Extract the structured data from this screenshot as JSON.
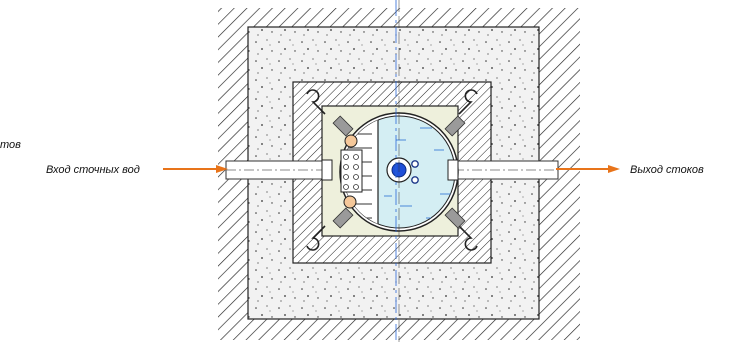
{
  "labels": {
    "left_cut": "тов",
    "inlet": "Вход сточных вод",
    "outlet": "Выход стоков"
  },
  "colors": {
    "arrow": "#e8741a",
    "concrete_fill": "#f2f2f2",
    "inner_box": "#eef0dc",
    "water": "#d4eef3",
    "float_ball": "#f5c89a",
    "pump_core": "#1f4fd8",
    "axis": "#2a66d6"
  },
  "icons": {
    "inlet_arrow": "arrow-right-icon",
    "outlet_arrow": "arrow-right-icon"
  }
}
